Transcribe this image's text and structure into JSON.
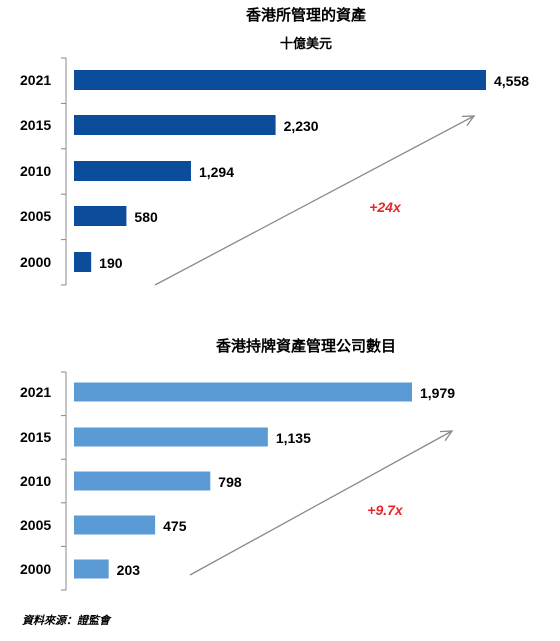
{
  "chart_data": [
    {
      "type": "bar",
      "orientation": "horizontal",
      "title": "香港所管理的資產",
      "subtitle": "十億美元",
      "categories": [
        "2021",
        "2015",
        "2010",
        "2005",
        "2000"
      ],
      "values": [
        4558,
        2230,
        1294,
        580,
        190
      ],
      "value_labels": [
        "4,558",
        "2,230",
        "1,294",
        "580",
        "190"
      ],
      "bar_color": "#0B4C9B",
      "growth_label": "+24x",
      "growth_color": "#E8262A"
    },
    {
      "type": "bar",
      "orientation": "horizontal",
      "title": "香港持牌資產管理公司數目",
      "subtitle": "",
      "categories": [
        "2021",
        "2015",
        "2010",
        "2005",
        "2000"
      ],
      "values": [
        1979,
        1135,
        798,
        475,
        203
      ],
      "value_labels": [
        "1,979",
        "1,135",
        "798",
        "475",
        "203"
      ],
      "bar_color": "#5B9BD5",
      "growth_label": "+9.7x",
      "growth_color": "#E8262A"
    }
  ],
  "source_note": "資料來源：證監會"
}
